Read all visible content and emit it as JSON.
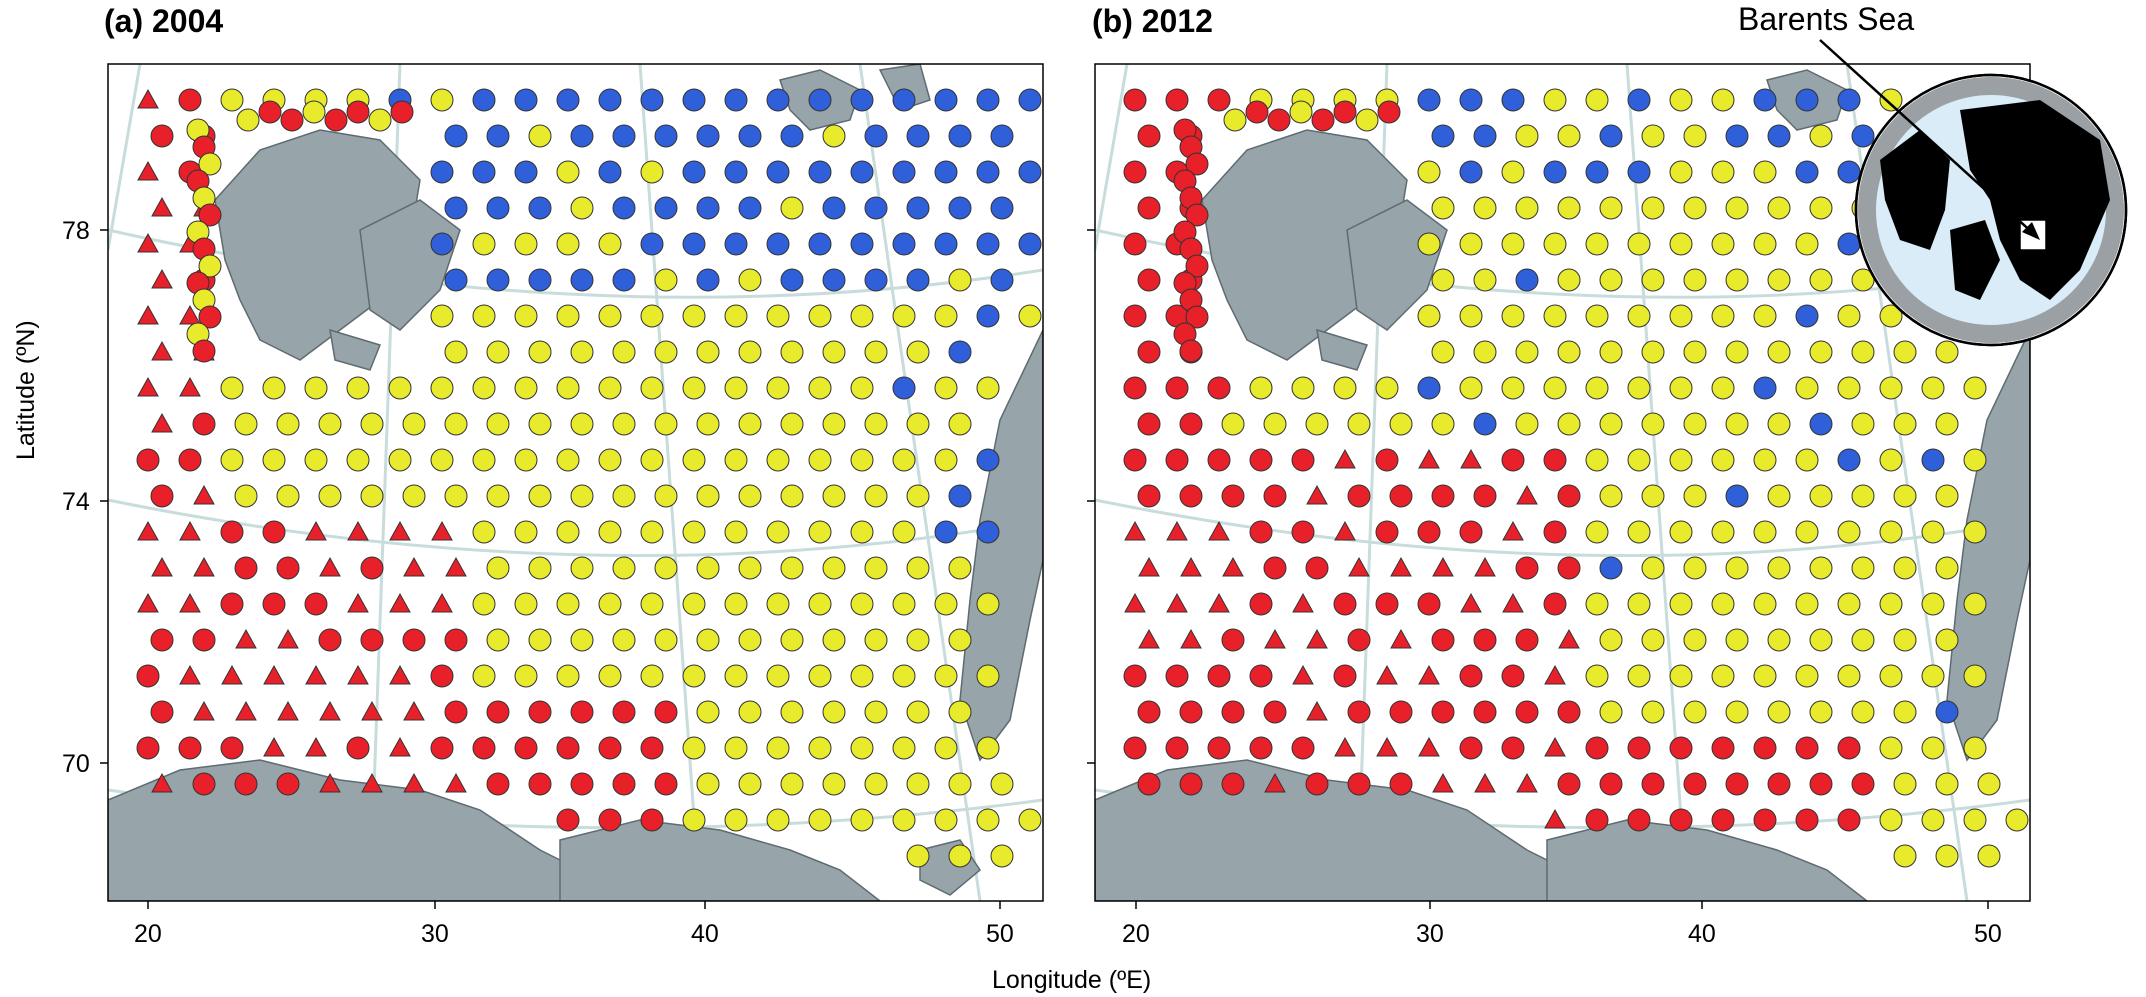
{
  "figure": {
    "xlabel": "Longitude (ºE)",
    "ylabel": "Latitude (ºN)",
    "inset_label": "Barents Sea"
  },
  "colors": {
    "land": "#97a4aa",
    "land_edge": "#5e6b71",
    "graticule": "#c8dcdc",
    "red": "#e8202a",
    "yellow": "#e8ea2c",
    "blue": "#2f5fd9",
    "inset_ocean": "#d9ecf7",
    "inset_land": "#000000",
    "inset_bg": "#9aa0a3"
  },
  "panels": [
    {
      "title": "(a) 2004",
      "xticks": [
        "20",
        "30",
        "40",
        "50"
      ],
      "yticks": [
        "78",
        "74",
        "70"
      ]
    },
    {
      "title": "(b) 2012",
      "xticks": [
        "20",
        "30",
        "40",
        "50"
      ],
      "yticks": [
        "78",
        "74",
        "70"
      ]
    }
  ],
  "map_data": {
    "symbols": {
      "circle": "station (circle)",
      "triangle": "station (triangle)"
    },
    "panel_a_year": "2004",
    "panel_b_year": "2012",
    "layer_colors": [
      "red",
      "yellow",
      "blue"
    ]
  }
}
